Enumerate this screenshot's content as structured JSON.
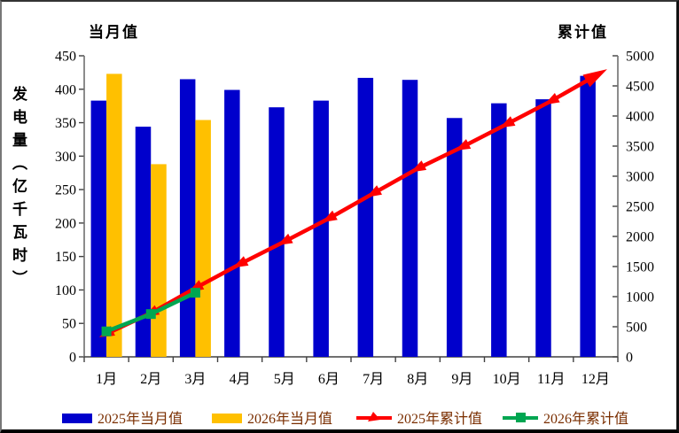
{
  "chart_data": {
    "type": "combo",
    "title": "",
    "categories": [
      "1月",
      "2月",
      "3月",
      "4月",
      "5月",
      "6月",
      "7月",
      "8月",
      "9月",
      "10月",
      "11月",
      "12月"
    ],
    "series": [
      {
        "name": "2025年当月值",
        "type": "bar",
        "axis": "left",
        "color": "#0000CC",
        "values": [
          383,
          344,
          415,
          399,
          373,
          383,
          417,
          414,
          357,
          379,
          385,
          420
        ]
      },
      {
        "name": "2026年当月值",
        "type": "bar",
        "axis": "left",
        "color": "#FFC000",
        "values": [
          423,
          288,
          354
        ]
      },
      {
        "name": "2025年累计值",
        "type": "line",
        "axis": "right",
        "color": "#FF0000",
        "marker": "arrow",
        "values": [
          383,
          727,
          1142,
          1541,
          1914,
          2297,
          2714,
          3128,
          3485,
          3864,
          4249,
          4669
        ]
      },
      {
        "name": "2026年累计值",
        "type": "line",
        "axis": "right",
        "color": "#00A651",
        "marker": "square",
        "values": [
          423,
          711,
          1065
        ]
      }
    ],
    "left_axis": {
      "title": "当月值",
      "label": "发电量（亿千瓦时）",
      "min": 0,
      "max": 450,
      "step": 50,
      "ticks": [
        0,
        50,
        100,
        150,
        200,
        250,
        300,
        350,
        400,
        450
      ]
    },
    "right_axis": {
      "title": "累计值",
      "min": 0,
      "max": 5000,
      "step": 500,
      "ticks": [
        0,
        500,
        1000,
        1500,
        2000,
        2500,
        3000,
        3500,
        4000,
        4500,
        5000
      ]
    },
    "grid": false,
    "legend_position": "bottom",
    "legend_text_color": "#7a2e00",
    "axis_line_color": "#707070"
  }
}
